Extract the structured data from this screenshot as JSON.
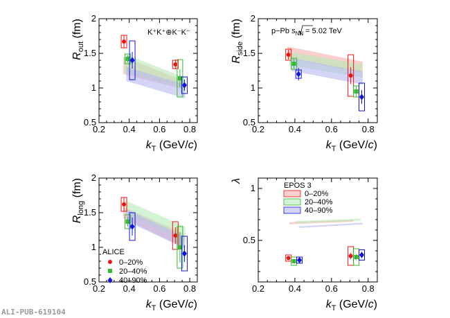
{
  "watermark": "ALI-PUB-619104",
  "colors": {
    "c0": "#ee1111",
    "c1": "#33bb33",
    "c2": "#1111dd",
    "band0": "#f4b0b0",
    "band1": "#b8eab8",
    "band2": "#b8b8f0"
  },
  "chart_data": [
    {
      "id": "rout",
      "type": "scatter",
      "title": "",
      "xlabel_main": "k",
      "xlabel_sub": "T",
      "xlabel_rest": " (GeV/",
      "xlabel_c": "c",
      "xlabel_end": ")",
      "ylabel_main": "R",
      "ylabel_sub": "out",
      "ylabel_rest": " (fm)",
      "xlim": [
        0.2,
        0.85
      ],
      "ylim": [
        0.5,
        2
      ],
      "xticks": [
        "0.2",
        "0.4",
        "0.6",
        "0.8"
      ],
      "yticks": [
        "0.5",
        "1",
        "1.5",
        "2"
      ],
      "annotation": "K⁺K⁺⊕K⁻K⁻",
      "series": [
        {
          "x": [
            0.365,
            0.705
          ],
          "y": [
            1.67,
            1.34
          ],
          "stat": [
            0.09,
            0.07
          ],
          "sys": [
            0.09,
            0.06
          ]
        },
        {
          "x": [
            0.39,
            0.735
          ],
          "y": [
            1.42,
            1.14
          ],
          "stat": [
            0.05,
            0.13
          ],
          "sys": [
            0.07,
            0.27
          ]
        },
        {
          "x": [
            0.42,
            0.765
          ],
          "y": [
            1.4,
            1.04
          ],
          "stat": [
            0.12,
            0.08
          ],
          "sys": [
            0.28,
            0.12
          ]
        }
      ],
      "bands": [
        {
          "x": [
            0.36,
            0.76
          ],
          "lo": [
            1.2,
            0.98
          ],
          "hi": [
            1.45,
            1.11
          ]
        },
        {
          "x": [
            0.37,
            0.77
          ],
          "lo": [
            1.22,
            1.0
          ],
          "hi": [
            1.49,
            1.15
          ]
        },
        {
          "x": [
            0.38,
            0.77
          ],
          "lo": [
            1.1,
            0.85
          ],
          "hi": [
            1.3,
            1.05
          ]
        }
      ]
    },
    {
      "id": "rside",
      "type": "scatter",
      "title": "",
      "xlabel_main": "k",
      "xlabel_sub": "T",
      "xlabel_rest": " (GeV/",
      "xlabel_c": "c",
      "xlabel_end": ")",
      "ylabel_main": "R",
      "ylabel_sub": "side",
      "ylabel_rest": " (fm)",
      "xlim": [
        0.2,
        0.85
      ],
      "ylim": [
        0.5,
        2
      ],
      "xticks": [
        "0.2",
        "0.4",
        "0.6",
        "0.8"
      ],
      "yticks": [
        "0.5",
        "1",
        "1.5",
        "2"
      ],
      "annotation_pre": "p−Pb ",
      "annotation_s": "s",
      "annotation_sub": "NN",
      "annotation_post": " = 5.02 TeV",
      "series": [
        {
          "x": [
            0.365,
            0.705
          ],
          "y": [
            1.48,
            1.18
          ],
          "stat": [
            0.07,
            0.12
          ],
          "sys": [
            0.08,
            0.3
          ]
        },
        {
          "x": [
            0.395,
            0.735
          ],
          "y": [
            1.35,
            0.95
          ],
          "stat": [
            0.07,
            0.08
          ],
          "sys": [
            0.08,
            0.08
          ]
        },
        {
          "x": [
            0.42,
            0.765
          ],
          "y": [
            1.2,
            0.87
          ],
          "stat": [
            0.09,
            0.1
          ],
          "sys": [
            0.06,
            0.2
          ]
        }
      ],
      "bands": [
        {
          "x": [
            0.36,
            0.77
          ],
          "lo": [
            1.42,
            1.22
          ],
          "hi": [
            1.6,
            1.38
          ]
        },
        {
          "x": [
            0.37,
            0.77
          ],
          "lo": [
            1.33,
            1.15
          ],
          "hi": [
            1.52,
            1.34
          ]
        },
        {
          "x": [
            0.38,
            0.77
          ],
          "lo": [
            1.25,
            1.05
          ],
          "hi": [
            1.43,
            1.24
          ]
        }
      ]
    },
    {
      "id": "rlong",
      "type": "scatter",
      "title": "",
      "xlabel_main": "k",
      "xlabel_sub": "T",
      "xlabel_rest": " (GeV/",
      "xlabel_c": "c",
      "xlabel_end": ")",
      "ylabel_main": "R",
      "ylabel_sub": "long",
      "ylabel_rest": " (fm)",
      "xlim": [
        0.2,
        0.85
      ],
      "ylim": [
        0.5,
        2
      ],
      "xticks": [
        "0.2",
        "0.4",
        "0.6",
        "0.8"
      ],
      "yticks": [
        "0.5",
        "1",
        "1.5",
        "2"
      ],
      "legend_title": "ALICE",
      "legend": [
        "0–20%",
        "20–40%",
        "40–90%"
      ],
      "series": [
        {
          "x": [
            0.365,
            0.705
          ],
          "y": [
            1.62,
            1.17
          ],
          "stat": [
            0.1,
            0.12
          ],
          "sys": [
            0.1,
            0.2
          ]
        },
        {
          "x": [
            0.39,
            0.735
          ],
          "y": [
            1.37,
            1.0
          ],
          "stat": [
            0.07,
            0.22
          ],
          "sys": [
            0.1,
            0.3
          ]
        },
        {
          "x": [
            0.42,
            0.765
          ],
          "y": [
            1.3,
            0.91
          ],
          "stat": [
            0.13,
            0.12
          ],
          "sys": [
            0.2,
            0.25
          ]
        }
      ],
      "bands": [
        {
          "x": [
            0.36,
            0.76
          ],
          "lo": [
            1.42,
            1.0
          ],
          "hi": [
            1.58,
            1.2
          ]
        },
        {
          "x": [
            0.37,
            0.77
          ],
          "lo": [
            1.5,
            1.08
          ],
          "hi": [
            1.68,
            1.3
          ]
        },
        {
          "x": [
            0.38,
            0.77
          ],
          "lo": [
            1.38,
            0.98
          ],
          "hi": [
            1.55,
            1.15
          ]
        }
      ]
    },
    {
      "id": "lambda",
      "type": "scatter",
      "title": "",
      "xlabel_main": "k",
      "xlabel_sub": "T",
      "xlabel_rest": " (GeV/",
      "xlabel_c": "c",
      "xlabel_end": ")",
      "ylabel_main": "λ",
      "ylabel_sub": "",
      "ylabel_rest": "",
      "xlim": [
        0.2,
        0.85
      ],
      "ylim": [
        0.1,
        1.1
      ],
      "xticks": [
        "0.2",
        "0.4",
        "0.6",
        "0.8"
      ],
      "yticks": [
        "0.5",
        "1"
      ],
      "ytick_values": [
        0.5,
        1
      ],
      "legend_title": "EPOS 3",
      "legend": [
        "0–20%",
        "20–40%",
        "40–90%"
      ],
      "series": [
        {
          "x": [
            0.365,
            0.705
          ],
          "y": [
            0.33,
            0.35
          ],
          "stat": [
            0.02,
            0.03
          ],
          "sys": [
            0.03,
            0.09
          ]
        },
        {
          "x": [
            0.395,
            0.735
          ],
          "y": [
            0.3,
            0.34
          ],
          "stat": [
            0.02,
            0.03
          ],
          "sys": [
            0.04,
            0.08
          ]
        },
        {
          "x": [
            0.425,
            0.765
          ],
          "y": [
            0.31,
            0.36
          ],
          "stat": [
            0.02,
            0.03
          ],
          "sys": [
            0.03,
            0.05
          ]
        }
      ],
      "bands": [
        {
          "x": [
            0.37,
            0.72
          ],
          "lo": [
            0.655,
            0.68
          ],
          "hi": [
            0.675,
            0.7
          ]
        },
        {
          "x": [
            0.4,
            0.76
          ],
          "lo": [
            0.665,
            0.69
          ],
          "hi": [
            0.685,
            0.71
          ]
        },
        {
          "x": [
            0.42,
            0.77
          ],
          "lo": [
            0.62,
            0.655
          ],
          "hi": [
            0.635,
            0.67
          ]
        }
      ]
    }
  ]
}
